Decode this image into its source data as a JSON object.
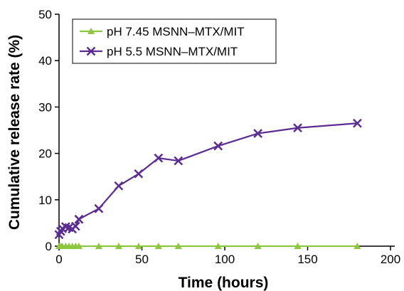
{
  "chart_data": {
    "type": "line",
    "xlabel": "Time (hours)",
    "ylabel": "Cumulative release rate (%)",
    "xlim": [
      0,
      200
    ],
    "ylim": [
      0,
      50
    ],
    "xticks": [
      0,
      50,
      100,
      150,
      200
    ],
    "yticks": [
      0,
      10,
      20,
      30,
      40,
      50
    ],
    "grid": false,
    "legend_position": "top-left",
    "series": [
      {
        "name": "pH 7.45 MSNN–MTX/MIT",
        "color": "#8DC63F",
        "marker": "triangle",
        "x": [
          0,
          1,
          2,
          4,
          6,
          8,
          10,
          12,
          24,
          36,
          48,
          60,
          72,
          96,
          120,
          144,
          180
        ],
        "y": [
          0,
          0,
          0,
          0,
          0,
          0,
          0,
          0,
          0,
          0,
          0,
          0,
          0,
          0,
          0,
          0,
          0
        ]
      },
      {
        "name": "pH 5.5 MSNN–MTX/MIT",
        "color": "#5B2C91",
        "marker": "x",
        "x": [
          0,
          1,
          2,
          4,
          6,
          8,
          10,
          12,
          24,
          36,
          48,
          60,
          72,
          96,
          120,
          144,
          180
        ],
        "y": [
          2.5,
          3.2,
          3.8,
          4.2,
          4.0,
          3.7,
          4.3,
          5.8,
          8.1,
          13.0,
          15.6,
          19.0,
          18.4,
          21.6,
          24.3,
          25.5,
          26.5
        ]
      }
    ]
  }
}
